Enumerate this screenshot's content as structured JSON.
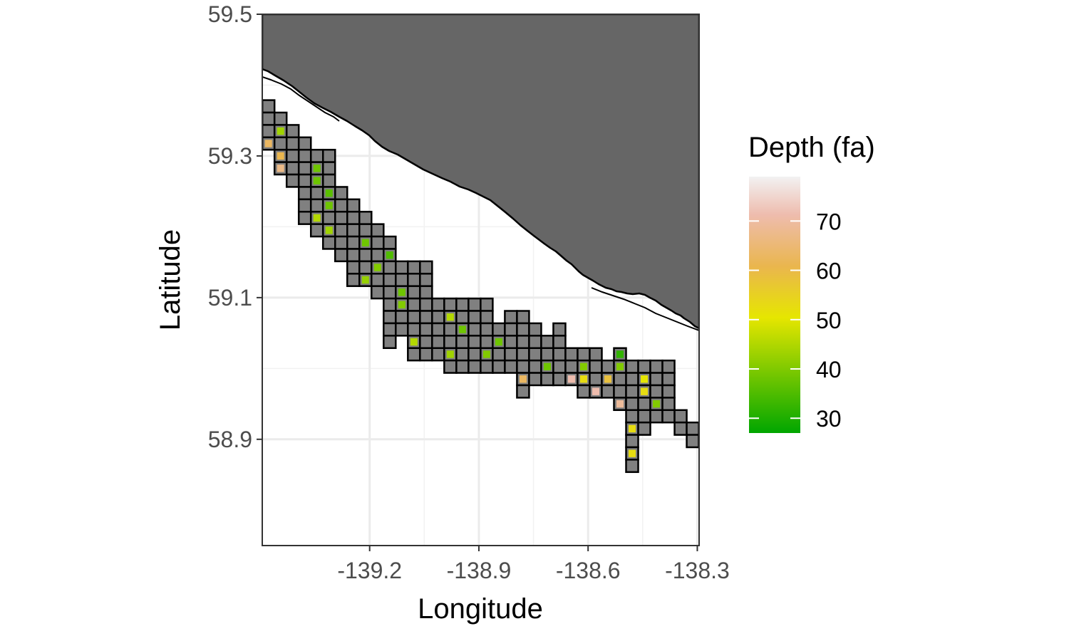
{
  "chart_data": {
    "type": "heatmap",
    "title": "",
    "xlabel": "Longitude",
    "ylabel": "Latitude",
    "xlim": [
      -139.495,
      -138.295
    ],
    "ylim": [
      58.75,
      59.5
    ],
    "x_ticks": [
      -139.2,
      -138.9,
      -138.6,
      -138.3
    ],
    "x_tick_labels": [
      "-139.2",
      "-138.9",
      "-138.6",
      "-138.3"
    ],
    "y_ticks": [
      58.9,
      59.1,
      59.3,
      59.5
    ],
    "y_tick_labels": [
      "58.9",
      "59.1",
      "59.3",
      "59.5"
    ],
    "grid": true,
    "cell_size_deg": {
      "lon": 0.0333,
      "lat": 0.0175
    },
    "land_color": "#666666",
    "no_data_color": "#808080",
    "legend": {
      "title": "Depth (fa)",
      "position": "right",
      "range": [
        27,
        79
      ],
      "ticks": [
        30,
        40,
        50,
        60,
        70
      ],
      "tick_labels": [
        "30",
        "40",
        "50",
        "60",
        "70"
      ],
      "colors": [
        "#00a600",
        "#e6e600",
        "#eab64e",
        "#eebcad",
        "#f2f2f2"
      ]
    },
    "cells": [
      {
        "col": 0,
        "rows": [
          0,
          1,
          2,
          3
        ],
        "depths": {
          "3": 62
        }
      },
      {
        "col": 1,
        "rows": [
          1,
          2,
          3,
          4,
          5
        ],
        "depths": {
          "2": 43,
          "4": 60,
          "5": 66
        }
      },
      {
        "col": 2,
        "rows": [
          2,
          3,
          4,
          5,
          6
        ],
        "depths": {}
      },
      {
        "col": 3,
        "rows": [
          3,
          4,
          5,
          6,
          7,
          8,
          9
        ],
        "depths": {}
      },
      {
        "col": 4,
        "rows": [
          4,
          5,
          6,
          7,
          8,
          9,
          10
        ],
        "depths": {
          "5": 38,
          "6": 38,
          "9": 45
        }
      },
      {
        "col": 5,
        "rows": [
          4,
          5,
          6,
          7,
          8,
          9,
          10,
          11
        ],
        "depths": {
          "7": 36,
          "8": 38,
          "10": 43
        }
      },
      {
        "col": 6,
        "rows": [
          7,
          8,
          9,
          10,
          11,
          12
        ],
        "depths": {}
      },
      {
        "col": 7,
        "rows": [
          8,
          9,
          10,
          11,
          12,
          13,
          14
        ],
        "depths": {}
      },
      {
        "col": 8,
        "rows": [
          9,
          10,
          11,
          12,
          13,
          14
        ],
        "depths": {
          "11": 38,
          "14": 42
        }
      },
      {
        "col": 9,
        "rows": [
          10,
          11,
          12,
          13,
          14,
          15
        ],
        "depths": {
          "13": 40
        }
      },
      {
        "col": 10,
        "rows": [
          11,
          12,
          13,
          14,
          15,
          16,
          17,
          18,
          19
        ],
        "depths": {
          "12": 35
        }
      },
      {
        "col": 11,
        "rows": [
          13,
          14,
          15,
          16,
          17,
          18
        ],
        "depths": {
          "15": 38,
          "16": 40
        }
      },
      {
        "col": 12,
        "rows": [
          13,
          14,
          15,
          16,
          17,
          18,
          19,
          20
        ],
        "depths": {
          "19": 45
        }
      },
      {
        "col": 13,
        "rows": [
          13,
          14,
          15,
          16,
          17,
          18,
          19,
          20
        ],
        "depths": {}
      },
      {
        "col": 14,
        "rows": [
          16,
          17,
          18,
          19,
          20
        ],
        "depths": {}
      },
      {
        "col": 15,
        "rows": [
          16,
          17,
          18,
          19,
          20,
          21
        ],
        "depths": {
          "17": 45,
          "20": 43
        }
      },
      {
        "col": 16,
        "rows": [
          16,
          17,
          18,
          19,
          20,
          21
        ],
        "depths": {
          "18": 38
        }
      },
      {
        "col": 17,
        "rows": [
          16,
          17,
          18,
          19,
          20,
          21
        ],
        "depths": {}
      },
      {
        "col": 18,
        "rows": [
          16,
          17,
          18,
          19,
          20,
          21
        ],
        "depths": {
          "20": 40
        }
      },
      {
        "col": 19,
        "rows": [
          18,
          19,
          20,
          21
        ],
        "depths": {
          "19": 38
        }
      },
      {
        "col": 20,
        "rows": [
          17,
          18,
          19,
          20,
          21
        ],
        "depths": {}
      },
      {
        "col": 21,
        "rows": [
          17,
          18,
          19,
          20,
          21,
          22,
          23
        ],
        "depths": {
          "22": 62
        }
      },
      {
        "col": 22,
        "rows": [
          18,
          19,
          20,
          21,
          22
        ],
        "depths": {}
      },
      {
        "col": 23,
        "rows": [
          19,
          20,
          21,
          22
        ],
        "depths": {
          "21": 38
        }
      },
      {
        "col": 24,
        "rows": [
          18,
          19,
          20,
          21,
          22
        ],
        "depths": {}
      },
      {
        "col": 25,
        "rows": [
          20,
          21,
          22
        ],
        "depths": {
          "22": 70
        }
      },
      {
        "col": 26,
        "rows": [
          20,
          21,
          22,
          23
        ],
        "depths": {
          "21": 40,
          "22": 52
        }
      },
      {
        "col": 27,
        "rows": [
          20,
          21,
          22,
          23
        ],
        "depths": {
          "23": 70
        }
      },
      {
        "col": 28,
        "rows": [
          21,
          22,
          23
        ],
        "depths": {
          "22": 58
        }
      },
      {
        "col": 29,
        "rows": [
          20,
          21,
          22,
          23,
          24
        ],
        "depths": {
          "20": 32,
          "21": 40,
          "24": 68
        }
      },
      {
        "col": 30,
        "rows": [
          21,
          22,
          23,
          24,
          25,
          26,
          27,
          28,
          29
        ],
        "depths": {
          "26": 52,
          "28": 52
        }
      },
      {
        "col": 31,
        "rows": [
          21,
          22,
          23,
          24,
          25,
          26
        ],
        "depths": {
          "22": 50,
          "23": 52
        }
      },
      {
        "col": 32,
        "rows": [
          21,
          22,
          23,
          24,
          25
        ],
        "depths": {
          "24": 40
        }
      },
      {
        "col": 33,
        "rows": [
          21,
          22,
          23,
          24,
          25
        ],
        "depths": {}
      },
      {
        "col": 34,
        "rows": [
          25,
          26
        ],
        "depths": {}
      },
      {
        "col": 35,
        "rows": [
          26,
          27
        ],
        "depths": {}
      },
      {
        "col": 36,
        "rows": [
          27
        ],
        "depths": {}
      }
    ]
  }
}
